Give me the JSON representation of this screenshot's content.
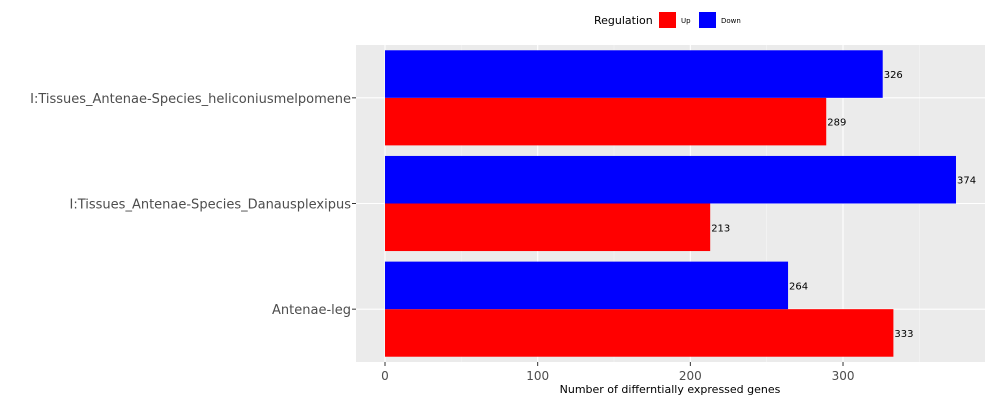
{
  "chart_data": {
    "type": "bar",
    "orientation": "horizontal",
    "categories": [
      "Antenae-leg",
      "I:Tissues_Antenae-Species_Danausplexipus",
      "I:Tissues_Antenae-Species_heliconiusmelpomene"
    ],
    "series": [
      {
        "name": "Up",
        "color": "#ff0000",
        "values": [
          333,
          213,
          289
        ]
      },
      {
        "name": "Down",
        "color": "#0000ff",
        "values": [
          264,
          374,
          326
        ]
      }
    ],
    "xlabel": "Number of differntially expressed genes",
    "ylabel": "",
    "xlim": [
      -19,
      393
    ],
    "xticks": [
      0,
      100,
      200,
      300
    ],
    "grid": true,
    "legend": {
      "title": "Regulation",
      "position": "top"
    }
  }
}
